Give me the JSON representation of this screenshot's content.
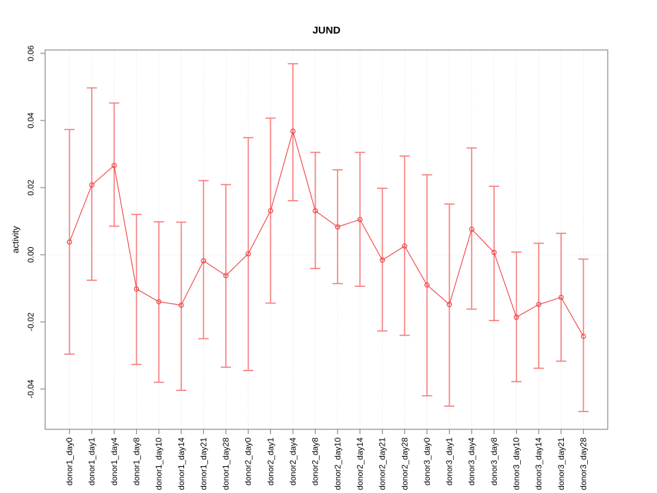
{
  "window": {
    "background": "#ffffff"
  },
  "chart_data": {
    "type": "line",
    "title": "JUND",
    "xlabel": "",
    "ylabel": "activity",
    "legend_position": "none",
    "marker": "open-circle",
    "has_error_bars": true,
    "grid": {
      "vertical_dotted_per_category": true,
      "horizontal_dotted_at_zero": true
    },
    "ylim": [
      -0.052,
      0.061
    ],
    "yticks": [
      -0.04,
      -0.02,
      0,
      0.02,
      0.04,
      0.06
    ],
    "categories": [
      "donor1_day0",
      "donor1_day1",
      "donor1_day4",
      "donor1_day8",
      "donor1_day10",
      "donor1_day14",
      "donor1_day21",
      "donor1_day28",
      "donor2_day0",
      "donor2_day1",
      "donor2_day4",
      "donor2_day8",
      "donor2_day10",
      "donor2_day14",
      "donor2_day21",
      "donor2_day28",
      "donor3_day0",
      "donor3_day1",
      "donor3_day4",
      "donor3_day8",
      "donor3_day10",
      "donor3_day14",
      "donor3_day21",
      "donor3_day28"
    ],
    "series": [
      {
        "name": "activity",
        "values": [
          0.0038,
          0.0208,
          0.0266,
          -0.0102,
          -0.014,
          -0.015,
          -0.0018,
          -0.0062,
          0.0003,
          0.0131,
          0.0368,
          0.0131,
          0.0083,
          0.0105,
          -0.0016,
          0.0026,
          -0.009,
          -0.0148,
          0.0076,
          0.0007,
          -0.0186,
          -0.0148,
          -0.0127,
          -0.0243
        ],
        "lower": [
          -0.0296,
          -0.0076,
          0.0085,
          -0.0327,
          -0.038,
          -0.0404,
          -0.025,
          -0.0335,
          -0.0345,
          -0.0144,
          0.0161,
          -0.0041,
          -0.0086,
          -0.0094,
          -0.0227,
          -0.024,
          -0.042,
          -0.0451,
          -0.0162,
          -0.0196,
          -0.0378,
          -0.0338,
          -0.0317,
          -0.0467
        ],
        "upper": [
          0.0373,
          0.0497,
          0.0452,
          0.012,
          0.0098,
          0.0097,
          0.0221,
          0.0209,
          0.0349,
          0.0407,
          0.0569,
          0.0305,
          0.0253,
          0.0305,
          0.0198,
          0.0294,
          0.0238,
          0.0151,
          0.0318,
          0.0204,
          0.0008,
          0.0034,
          0.0064,
          -0.0013
        ]
      }
    ],
    "colors": {
      "series_line": "#f04b4b",
      "error_bar": "#f57e7e",
      "grid": "#d9d9d9",
      "axis": "#878787",
      "text": "#000000",
      "background": "#ffffff"
    }
  }
}
